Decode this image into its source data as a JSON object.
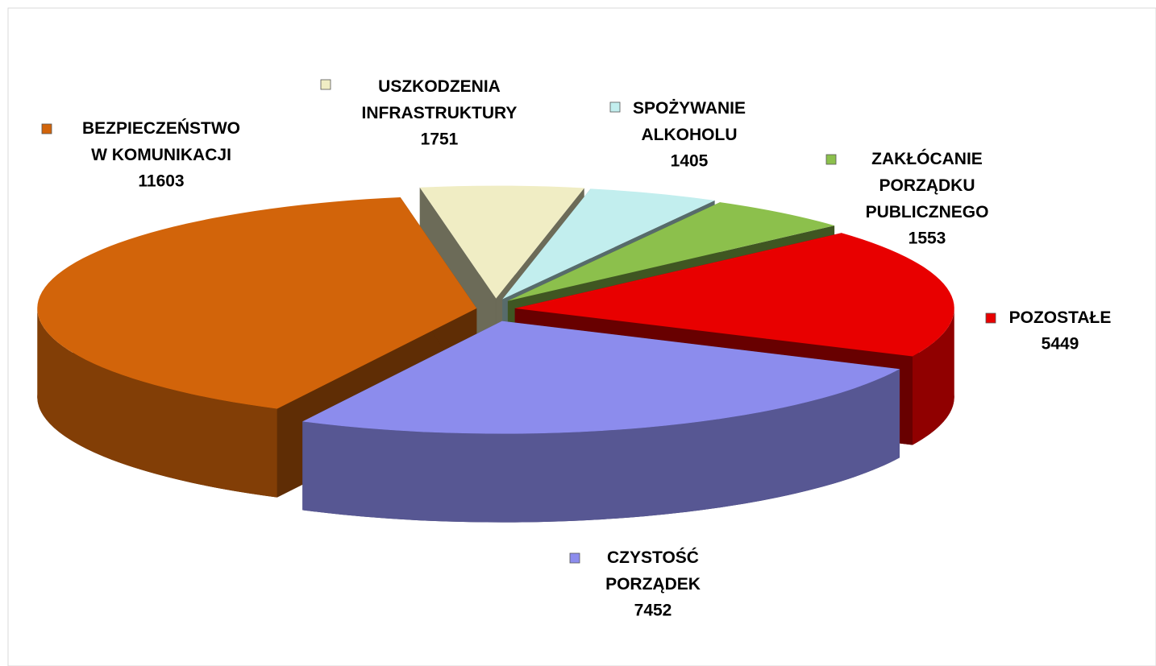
{
  "chart_data": {
    "type": "pie3d",
    "categories": [
      "USZKODZENIA\nINFRASTRUKTURY",
      "SPOŻYWANIE\nALKOHOLU",
      "ZAKŁÓCANIE\nPORZĄDKU\nPUBLICZNEGO",
      "POZOSTAŁE",
      "CZYSTOŚĆ\nPORZĄDEK",
      "BEZPIECZEŃSTWO\nW KOMUNIKACJI"
    ],
    "values": [
      1751,
      1405,
      1553,
      5449,
      7452,
      11603
    ],
    "colors": [
      "#f0edc4",
      "#c2eeee",
      "#8cc04c",
      "#e80000",
      "#8c8ced",
      "#d2640a"
    ]
  }
}
